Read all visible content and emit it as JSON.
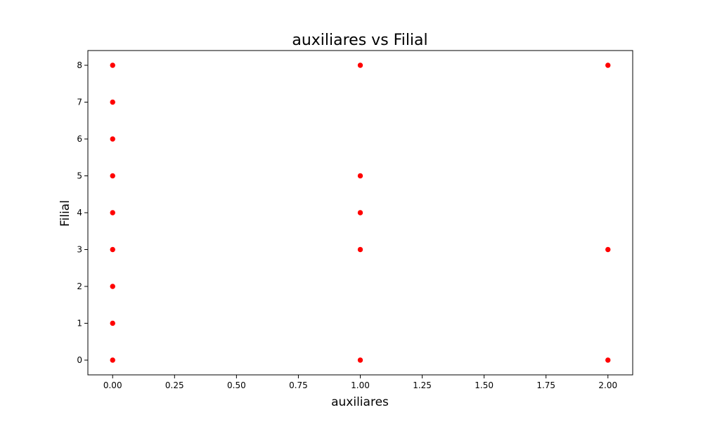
{
  "chart_data": {
    "type": "scatter",
    "title": "auxiliares vs Filial",
    "xlabel": "auxiliares",
    "ylabel": "Filial",
    "xlim": [
      -0.1,
      2.1
    ],
    "ylim": [
      -0.4,
      8.4
    ],
    "xticks": [
      0.0,
      0.25,
      0.5,
      0.75,
      1.0,
      1.25,
      1.5,
      1.75,
      2.0
    ],
    "xtick_labels": [
      "0.00",
      "0.25",
      "0.50",
      "0.75",
      "1.00",
      "1.25",
      "1.50",
      "1.75",
      "2.00"
    ],
    "yticks": [
      0,
      1,
      2,
      3,
      4,
      5,
      6,
      7,
      8
    ],
    "ytick_labels": [
      "0",
      "1",
      "2",
      "3",
      "4",
      "5",
      "6",
      "7",
      "8"
    ],
    "grid": false,
    "legend": false,
    "marker_color": "#ff0000",
    "points": [
      {
        "x": 0,
        "y": 8
      },
      {
        "x": 0,
        "y": 7
      },
      {
        "x": 0,
        "y": 6
      },
      {
        "x": 0,
        "y": 5
      },
      {
        "x": 0,
        "y": 4
      },
      {
        "x": 0,
        "y": 3
      },
      {
        "x": 0,
        "y": 2
      },
      {
        "x": 0,
        "y": 1
      },
      {
        "x": 0,
        "y": 0
      },
      {
        "x": 1,
        "y": 8
      },
      {
        "x": 1,
        "y": 5
      },
      {
        "x": 1,
        "y": 4
      },
      {
        "x": 1,
        "y": 3
      },
      {
        "x": 1,
        "y": 0
      },
      {
        "x": 2,
        "y": 8
      },
      {
        "x": 2,
        "y": 3
      },
      {
        "x": 2,
        "y": 0
      }
    ]
  }
}
